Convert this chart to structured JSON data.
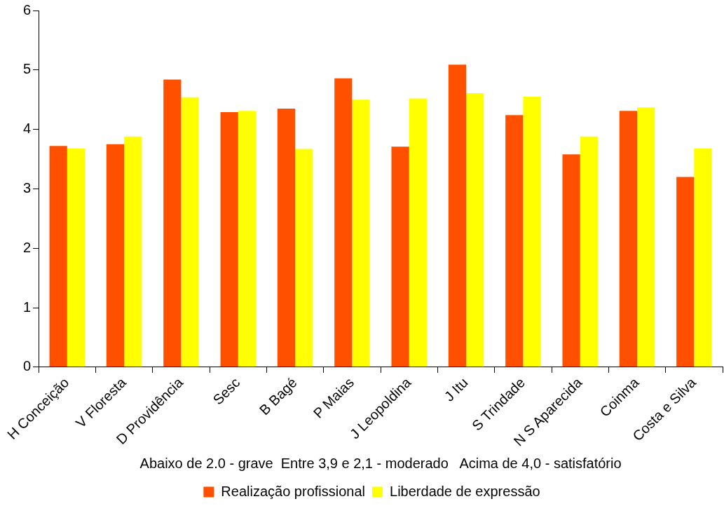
{
  "chart_data": {
    "type": "bar",
    "categories": [
      "H Conceição",
      "V Floresta",
      "D Providência",
      "Sesc",
      "B Bagé",
      "P Maias",
      "J Leopoldina",
      "J Itu",
      "S Trindade",
      "N S Aparecida",
      "Coinma",
      "Costa e Silva"
    ],
    "series": [
      {
        "name": "Realização profissional",
        "color": "#ff5000",
        "values": [
          3.72,
          3.75,
          4.84,
          4.29,
          4.35,
          4.86,
          3.71,
          5.09,
          4.24,
          3.58,
          4.31,
          3.2
        ]
      },
      {
        "name": "Liberdade de expressão",
        "color": "#ffff00",
        "values": [
          3.68,
          3.88,
          4.54,
          4.31,
          3.67,
          4.5,
          4.52,
          4.61,
          4.55,
          3.88,
          4.37,
          3.68
        ]
      }
    ],
    "xlabel": "Abaixo de 2.0 - grave  Entre 3,9 e 2,1 - moderado   Acima de 4,0 - satisfatório",
    "ylim": [
      0,
      6
    ],
    "yticks": [
      0,
      1,
      2,
      3,
      4,
      5,
      6
    ],
    "grid": false,
    "legend": "bottom"
  }
}
